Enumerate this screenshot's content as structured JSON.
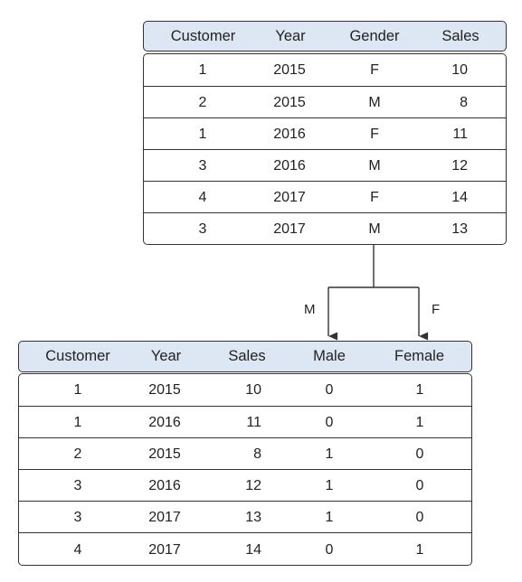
{
  "top_table": {
    "headers": [
      "Customer",
      "Year",
      "Gender",
      "Sales"
    ],
    "rows": [
      [
        "1",
        "2015",
        "F",
        "10"
      ],
      [
        "2",
        "2015",
        "M",
        "8"
      ],
      [
        "1",
        "2016",
        "F",
        "11"
      ],
      [
        "3",
        "2016",
        "M",
        "12"
      ],
      [
        "4",
        "2017",
        "F",
        "14"
      ],
      [
        "3",
        "2017",
        "M",
        "13"
      ]
    ]
  },
  "split": {
    "left_label": "M",
    "right_label": "F"
  },
  "bottom_table": {
    "headers": [
      "Customer",
      "Year",
      "Sales",
      "Male",
      "Female"
    ],
    "rows": [
      [
        "1",
        "2015",
        "10",
        "0",
        "1"
      ],
      [
        "1",
        "2016",
        "11",
        "0",
        "1"
      ],
      [
        "2",
        "2015",
        "8",
        "1",
        "0"
      ],
      [
        "3",
        "2016",
        "12",
        "1",
        "0"
      ],
      [
        "3",
        "2017",
        "13",
        "1",
        "0"
      ],
      [
        "4",
        "2017",
        "14",
        "0",
        "1"
      ]
    ]
  }
}
